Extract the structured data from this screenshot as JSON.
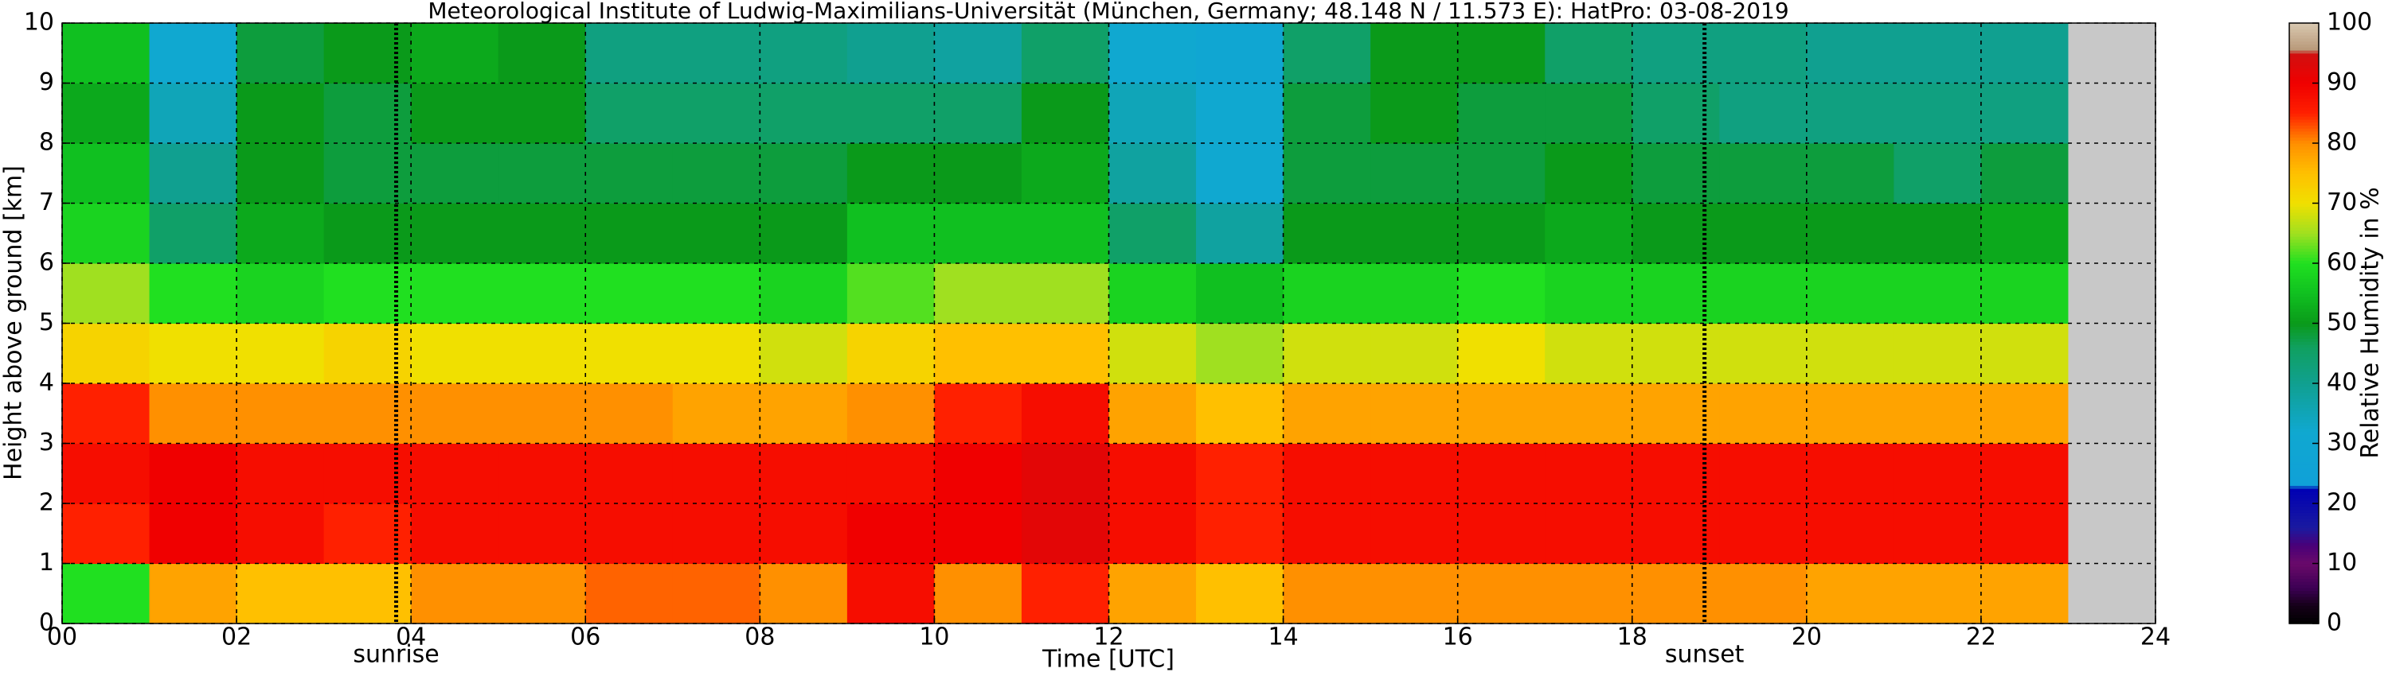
{
  "chart_data": {
    "type": "heatmap",
    "title": "Meteorological Institute of Ludwig-Maximilians-Universität (München, Germany; 48.148 N / 11.573 E):    HatPro: 03-08-2019",
    "x_label": "Time [UTC]",
    "y_label": "Height above ground [km]",
    "x": [
      0,
      1,
      2,
      3,
      4,
      5,
      6,
      7,
      8,
      9,
      10,
      11,
      12,
      13,
      14,
      15,
      16,
      17,
      18,
      19,
      20,
      21,
      22,
      23
    ],
    "y": [
      0,
      1,
      2,
      3,
      4,
      5,
      6,
      7,
      8,
      9,
      10
    ],
    "values": [
      [
        60,
        85,
        88,
        85,
        72,
        65,
        58,
        55,
        52,
        55
      ],
      [
        78,
        90,
        90,
        80,
        70,
        60,
        45,
        40,
        35,
        32
      ],
      [
        75,
        88,
        88,
        80,
        70,
        58,
        52,
        50,
        50,
        48
      ],
      [
        75,
        85,
        88,
        80,
        72,
        60,
        50,
        48,
        48,
        50
      ],
      [
        80,
        88,
        88,
        80,
        70,
        60,
        50,
        48,
        50,
        52
      ],
      [
        80,
        88,
        88,
        80,
        70,
        60,
        50,
        48,
        50,
        50
      ],
      [
        82,
        88,
        88,
        80,
        70,
        60,
        50,
        48,
        45,
        42
      ],
      [
        82,
        88,
        88,
        78,
        70,
        60,
        50,
        48,
        45,
        42
      ],
      [
        80,
        88,
        88,
        78,
        68,
        58,
        50,
        48,
        45,
        42
      ],
      [
        88,
        90,
        88,
        80,
        72,
        62,
        55,
        50,
        45,
        40
      ],
      [
        80,
        90,
        90,
        85,
        75,
        65,
        55,
        50,
        45,
        38
      ],
      [
        85,
        92,
        92,
        88,
        75,
        65,
        55,
        52,
        50,
        45
      ],
      [
        78,
        88,
        88,
        78,
        68,
        58,
        45,
        38,
        35,
        32
      ],
      [
        75,
        85,
        85,
        75,
        65,
        55,
        38,
        32,
        32,
        30
      ],
      [
        80,
        88,
        88,
        78,
        68,
        58,
        50,
        48,
        48,
        45
      ],
      [
        80,
        88,
        88,
        78,
        68,
        58,
        50,
        48,
        50,
        50
      ],
      [
        80,
        88,
        88,
        78,
        70,
        60,
        50,
        48,
        48,
        50
      ],
      [
        80,
        88,
        88,
        78,
        68,
        58,
        52,
        50,
        48,
        45
      ],
      [
        80,
        88,
        88,
        78,
        68,
        58,
        50,
        48,
        45,
        42
      ],
      [
        80,
        88,
        88,
        78,
        68,
        58,
        50,
        48,
        42,
        42
      ],
      [
        78,
        88,
        88,
        78,
        68,
        58,
        50,
        48,
        42,
        40
      ],
      [
        78,
        88,
        88,
        78,
        68,
        58,
        50,
        45,
        42,
        40
      ],
      [
        78,
        88,
        88,
        78,
        68,
        58,
        52,
        48,
        42,
        40
      ]
    ],
    "xlim": [
      0,
      24
    ],
    "xticks": [
      {
        "value": 0,
        "label": "00"
      },
      {
        "value": 2,
        "label": "02"
      },
      {
        "value": 4,
        "label": "04"
      },
      {
        "value": 6,
        "label": "06"
      },
      {
        "value": 8,
        "label": "08"
      },
      {
        "value": 10,
        "label": "10"
      },
      {
        "value": 12,
        "label": "12"
      },
      {
        "value": 14,
        "label": "14"
      },
      {
        "value": 16,
        "label": "16"
      },
      {
        "value": 18,
        "label": "18"
      },
      {
        "value": 20,
        "label": "20"
      },
      {
        "value": 22,
        "label": "22"
      },
      {
        "value": 24,
        "label": "24"
      }
    ],
    "ylim": [
      0,
      10
    ],
    "yticks": [
      0,
      1,
      2,
      3,
      4,
      5,
      6,
      7,
      8,
      9,
      10
    ],
    "grid": true,
    "missing_color": "#c8c8c8",
    "annotations": [
      {
        "text": "sunrise",
        "x": 3.83
      },
      {
        "text": "sunset",
        "x": 18.83
      }
    ],
    "colorbar": {
      "label": "Relative Humidity in %",
      "lim": [
        0,
        100
      ],
      "ticks": [
        0,
        10,
        20,
        30,
        40,
        50,
        60,
        70,
        80,
        90,
        100
      ],
      "stops": [
        [
          0,
          "#000000"
        ],
        [
          3,
          "#150018"
        ],
        [
          6,
          "#3d0055"
        ],
        [
          10,
          "#6a0a6a"
        ],
        [
          13,
          "#4a0078"
        ],
        [
          16,
          "#1a1aa0"
        ],
        [
          22.5,
          "#0000b4"
        ],
        [
          23,
          "#10a0d8"
        ],
        [
          32,
          "#10a8d0"
        ],
        [
          40,
          "#10a090"
        ],
        [
          46,
          "#10a060"
        ],
        [
          50,
          "#0a9a1a"
        ],
        [
          55,
          "#10c020"
        ],
        [
          60,
          "#20e020"
        ],
        [
          65,
          "#a0e020"
        ],
        [
          70,
          "#f0e000"
        ],
        [
          75,
          "#ffc000"
        ],
        [
          80,
          "#ff9000"
        ],
        [
          85,
          "#ff2000"
        ],
        [
          90,
          "#f00000"
        ],
        [
          95,
          "#d01010"
        ],
        [
          95.5,
          "#b89878"
        ],
        [
          100,
          "#d8c8b0"
        ]
      ]
    }
  }
}
